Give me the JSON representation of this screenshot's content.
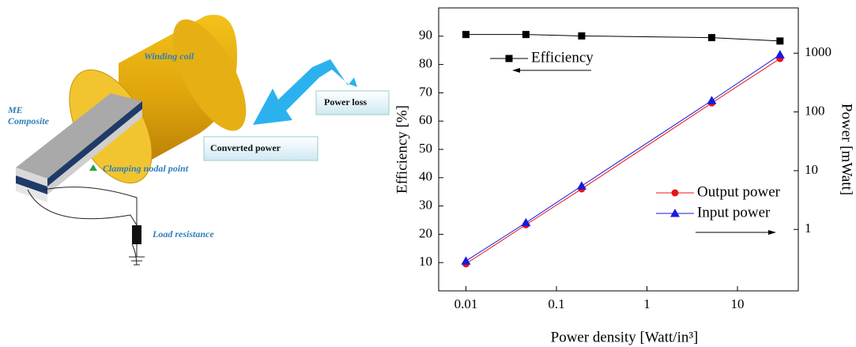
{
  "diagram": {
    "labels": [
      "Winding coil",
      "ME",
      "Composite",
      "Clamping nodal point",
      "Load resistance"
    ],
    "boxes": [
      "Power loss",
      "Converted power"
    ]
  },
  "chart_data": {
    "type": "line",
    "xlabel": "Power density [Watt/in³]",
    "ylabel": "Efficiency [%]",
    "y2label": "Power [mWatt]",
    "xscale": "log",
    "y2scale": "log",
    "xlim": [
      0.005,
      47
    ],
    "xticks": [
      0.01,
      0.1,
      1,
      10
    ],
    "ylim": [
      0,
      100
    ],
    "yticks": [
      10,
      20,
      30,
      40,
      50,
      60,
      70,
      80,
      90
    ],
    "y2lim": [
      0.09,
      5900
    ],
    "y2ticks": [
      1,
      10,
      100,
      1000
    ],
    "x": [
      0.01,
      0.046,
      0.19,
      5.2,
      29.5
    ],
    "series": [
      {
        "name": "Efficiency",
        "color": "#000000",
        "marker": "square",
        "values": [
          90.6,
          90.6,
          90.1,
          89.5,
          88.3
        ]
      },
      {
        "name": "Output power",
        "color": "#e8141b",
        "marker": "circle",
        "axis": "y2",
        "values": [
          0.26,
          1.2,
          4.9,
          142,
          810
        ]
      },
      {
        "name": "Input power",
        "color": "#1a1adc",
        "marker": "triangle",
        "axis": "y2",
        "values": [
          0.29,
          1.3,
          5.5,
          156,
          940
        ]
      }
    ]
  }
}
